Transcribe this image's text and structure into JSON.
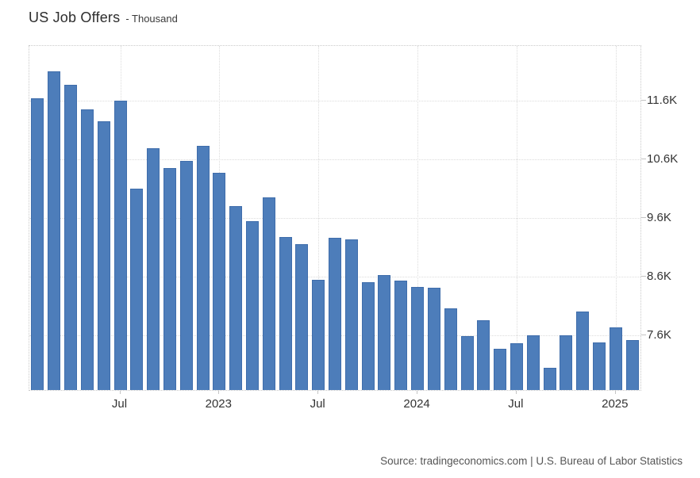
{
  "page": {
    "title": "US Job Offers",
    "subtitle": "- Thousand",
    "source": "Source: tradingeconomics.com | U.S. Bureau of Labor Statistics"
  },
  "colors": {
    "bar_fill": "#4d7dba",
    "bar_border": "#3f6dab",
    "grid_line": "#dcdcdc",
    "plot_border": "#c9c9c9",
    "axis_text": "#333333",
    "title_text": "#2d2d2d",
    "source_text": "#555555",
    "background": "#ffffff"
  },
  "chart_data": {
    "type": "bar",
    "title": "US Job Offers",
    "unit_label": "Thousand",
    "x": [
      "Feb 2022",
      "Mar 2022",
      "Apr 2022",
      "May 2022",
      "Jun 2022",
      "Jul 2022",
      "Aug 2022",
      "Sep 2022",
      "Oct 2022",
      "Nov 2022",
      "Dec 2022",
      "Jan 2023",
      "Feb 2023",
      "Mar 2023",
      "Apr 2023",
      "May 2023",
      "Jun 2023",
      "Jul 2023",
      "Aug 2023",
      "Sep 2023",
      "Oct 2023",
      "Nov 2023",
      "Dec 2023",
      "Jan 2024",
      "Feb 2024",
      "Mar 2024",
      "Apr 2024",
      "May 2024",
      "Jun 2024",
      "Jul 2024",
      "Aug 2024",
      "Sep 2024",
      "Oct 2024",
      "Nov 2024",
      "Dec 2024",
      "Jan 2025",
      "Feb 2025"
    ],
    "values": [
      11640,
      12110,
      11880,
      11460,
      11250,
      11610,
      10100,
      10790,
      10460,
      10580,
      10840,
      10370,
      9810,
      9540,
      9950,
      9280,
      9150,
      8550,
      9260,
      9240,
      8510,
      8620,
      8530,
      8420,
      8410,
      8060,
      7580,
      7850,
      7360,
      7460,
      7600,
      7040,
      7590,
      8000,
      7470,
      7730,
      7520
    ],
    "ylim": [
      6660,
      12540
    ],
    "y_ticks": [
      {
        "label": "11.6K",
        "value": 11600
      },
      {
        "label": "10.6K",
        "value": 10600
      },
      {
        "label": "9.6K",
        "value": 9600
      },
      {
        "label": "8.6K",
        "value": 8600
      },
      {
        "label": "7.6K",
        "value": 7600
      }
    ],
    "x_ticks": [
      {
        "label": "Jul",
        "index": 5
      },
      {
        "label": "2023",
        "index": 11
      },
      {
        "label": "Jul",
        "index": 17
      },
      {
        "label": "2024",
        "index": 23
      },
      {
        "label": "Jul",
        "index": 29
      },
      {
        "label": "2025",
        "index": 35
      }
    ],
    "grid": true,
    "legend_position": "none",
    "yaxis_side": "right",
    "xlabel": "",
    "ylabel": "Thousand"
  }
}
